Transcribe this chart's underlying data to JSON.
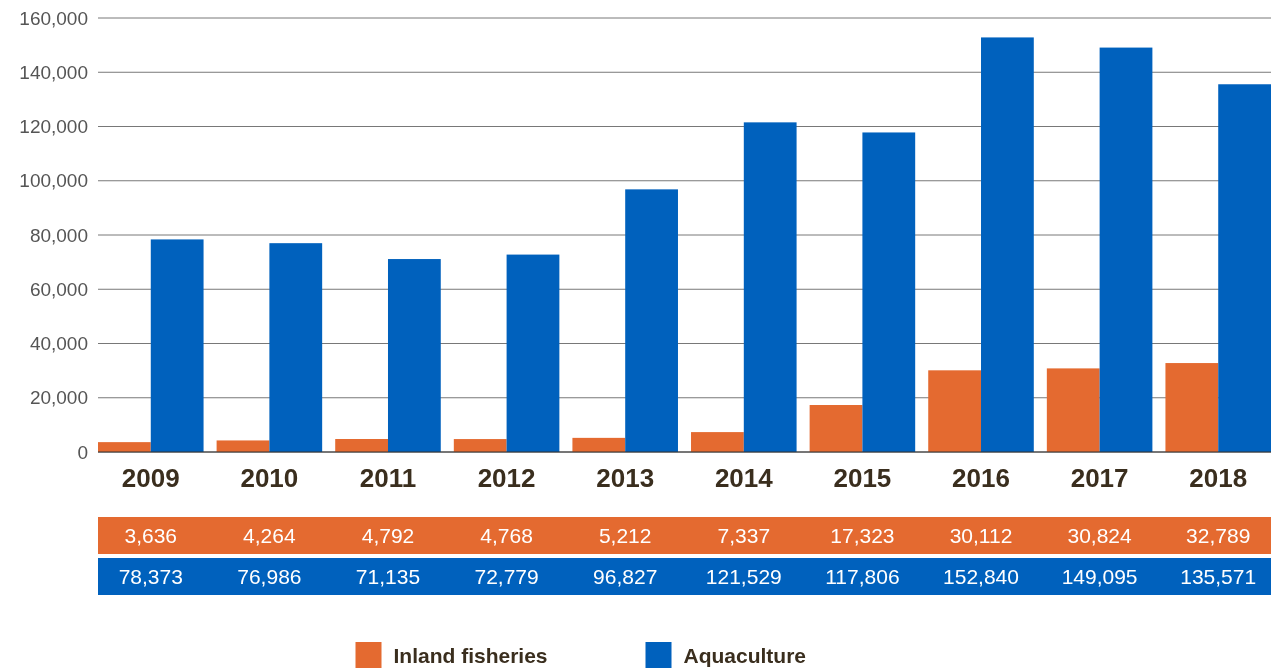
{
  "chart_data": {
    "type": "bar",
    "categories": [
      "2009",
      "2010",
      "2011",
      "2012",
      "2013",
      "2014",
      "2015",
      "2016",
      "2017",
      "2018"
    ],
    "series": [
      {
        "name": "Inland fisheries",
        "color": "#e46a30",
        "values": [
          3636,
          4264,
          4792,
          4768,
          5212,
          7337,
          17323,
          30112,
          30824,
          32789
        ],
        "value_labels": [
          "3,636",
          "4,264",
          "4,792",
          "4,768",
          "5,212",
          "7,337",
          "17,323",
          "30,112",
          "30,824",
          "32,789"
        ]
      },
      {
        "name": "Aquaculture",
        "color": "#0061bd",
        "values": [
          78373,
          76986,
          71135,
          72779,
          96827,
          121529,
          117806,
          152840,
          149095,
          135571
        ],
        "value_labels": [
          "78,373",
          "76,986",
          "71,135",
          "72,779",
          "96,827",
          "121,529",
          "117,806",
          "152,840",
          "149,095",
          "135,571"
        ]
      }
    ],
    "ylim": [
      0,
      160000
    ],
    "yticks": [
      {
        "value": 0,
        "label": "0"
      },
      {
        "value": 20000,
        "label": "20,000"
      },
      {
        "value": 40000,
        "label": "40,000"
      },
      {
        "value": 60000,
        "label": "60,000"
      },
      {
        "value": 80000,
        "label": "80,000"
      },
      {
        "value": 100000,
        "label": "100,000"
      },
      {
        "value": 120000,
        "label": "120,000"
      },
      {
        "value": 140000,
        "label": "140,000"
      },
      {
        "value": 160000,
        "label": "160,000"
      }
    ],
    "grid": "y",
    "legend": "bottom"
  }
}
